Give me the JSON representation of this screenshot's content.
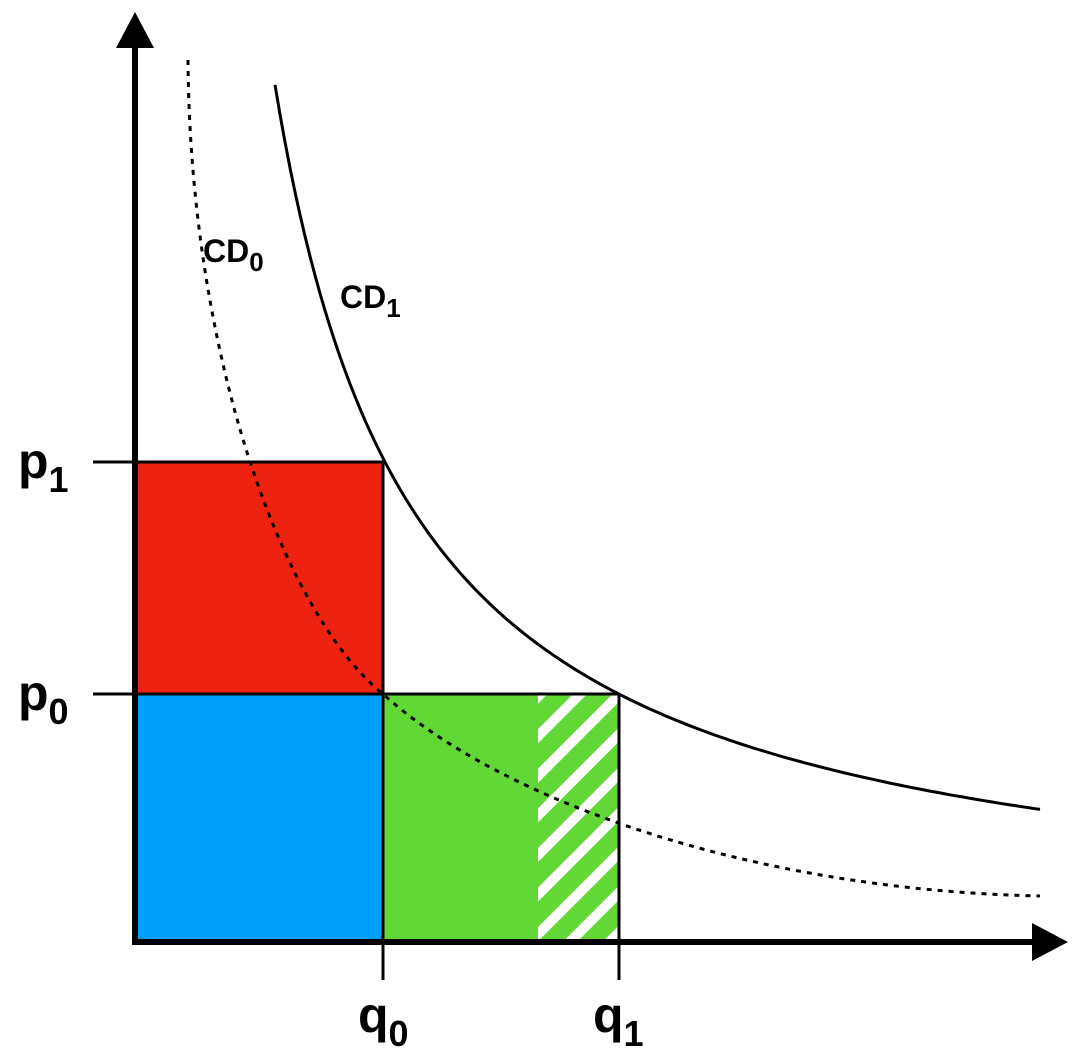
{
  "y_labels": [
    {
      "text": "p",
      "sub": "1"
    },
    {
      "text": "p",
      "sub": "0"
    }
  ],
  "x_labels": [
    {
      "text": "q",
      "sub": "0"
    },
    {
      "text": "q",
      "sub": "1"
    }
  ],
  "curves": [
    {
      "text": "CD",
      "sub": "0"
    },
    {
      "text": "CD",
      "sub": "1"
    }
  ]
}
